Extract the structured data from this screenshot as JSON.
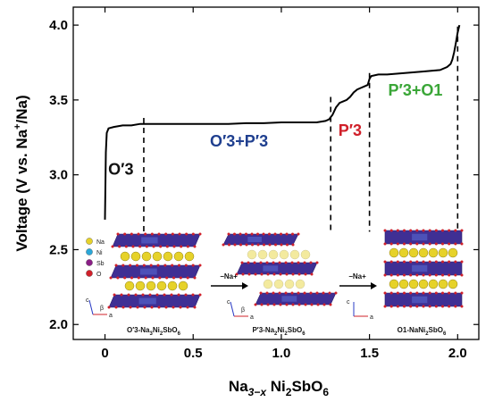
{
  "chart_data": {
    "type": "line",
    "xlabel": "Na3−x Ni2SbO6",
    "ylabel": "Voltage (V vs. Na+/Na)",
    "xlim": [
      -0.18,
      2.12
    ],
    "ylim": [
      1.9,
      4.12
    ],
    "x_ticks": [
      0,
      0.5,
      1.0,
      1.5,
      2.0
    ],
    "x_tick_labels": [
      "0",
      "0.5",
      "1.0",
      "1.5",
      "2.0"
    ],
    "y_ticks": [
      2.0,
      2.5,
      3.0,
      3.5,
      4.0
    ],
    "y_tick_labels": [
      "2.0",
      "2.5",
      "3.0",
      "3.5",
      "4.0"
    ],
    "series": [
      {
        "x": [
          0.0,
          0.005,
          0.01,
          0.02,
          0.05,
          0.1,
          0.15,
          0.2,
          0.3,
          0.4,
          0.5,
          0.6,
          0.7,
          0.8,
          0.9,
          1.0,
          1.1,
          1.2,
          1.25,
          1.27,
          1.29,
          1.31,
          1.33,
          1.35,
          1.37,
          1.39,
          1.41,
          1.43,
          1.45,
          1.47,
          1.49,
          1.5,
          1.51,
          1.55,
          1.6,
          1.7,
          1.8,
          1.9,
          1.94,
          1.96,
          1.97,
          1.98,
          1.99,
          2.0,
          2.01
        ],
        "y": [
          2.7,
          3.15,
          3.28,
          3.31,
          3.32,
          3.33,
          3.33,
          3.34,
          3.34,
          3.34,
          3.34,
          3.34,
          3.34,
          3.345,
          3.345,
          3.35,
          3.35,
          3.35,
          3.36,
          3.37,
          3.4,
          3.45,
          3.48,
          3.49,
          3.5,
          3.52,
          3.55,
          3.57,
          3.58,
          3.59,
          3.6,
          3.64,
          3.66,
          3.67,
          3.67,
          3.68,
          3.69,
          3.7,
          3.72,
          3.74,
          3.77,
          3.82,
          3.88,
          3.95,
          4.0
        ]
      }
    ],
    "phase_boundaries": [
      0.22,
      1.28,
      1.5,
      2.0
    ],
    "phase_labels": [
      {
        "text": "O′3",
        "x": 0.09,
        "y": 3.0,
        "color": "#111111"
      },
      {
        "text": "O′3+P′3",
        "x": 0.76,
        "y": 3.19,
        "color": "#1f3f8f"
      },
      {
        "text": "P′3",
        "x": 1.39,
        "y": 3.26,
        "color": "#d0202a"
      },
      {
        "text": "P′3+O1",
        "x": 1.76,
        "y": 3.53,
        "color": "#3aa637"
      }
    ],
    "grid": false,
    "inset": {
      "legend": [
        "Na",
        "Ni",
        "Sb",
        "O"
      ],
      "legend_colors": [
        "#e6d22a",
        "#2aa7d8",
        "#8a1e86",
        "#d0202a"
      ],
      "arrow_labels": [
        "−Na+",
        "−Na+"
      ],
      "captions": [
        {
          "pre": "O′3-Na",
          "s1": "3",
          "mid": "Ni",
          "s2": "2",
          "post": "SbO",
          "s3": "6"
        },
        {
          "pre": "P′3-Na",
          "s1": "2",
          "mid": "Ni",
          "s2": "2",
          "post": "SbO",
          "s3": "6"
        },
        {
          "pre": "O1-NaNi",
          "s1": "",
          "mid": "",
          "s2": "2",
          "post": "SbO",
          "s3": "6"
        }
      ],
      "axis_letters": [
        "c",
        "β",
        "a"
      ]
    },
    "label_parts": {
      "x": {
        "pre": "Na",
        "sub1": "3−x",
        "mid": " Ni",
        "sub2": "2",
        "post": "SbO",
        "sub3": "6"
      },
      "y": {
        "pre": "Voltage (V vs. Na",
        "sup": "+",
        "post": "/Na)"
      }
    }
  }
}
